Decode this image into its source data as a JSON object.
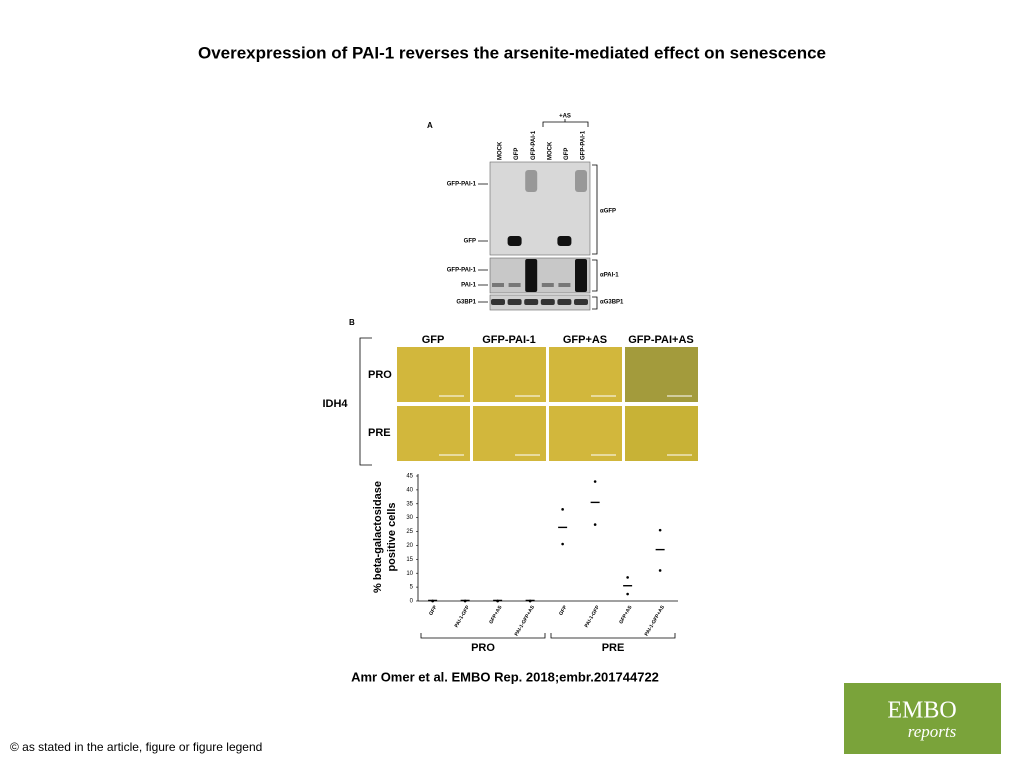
{
  "header": {
    "title": "Overexpression of PAI-1 reverses the arsenite-mediated effect on senescence"
  },
  "panel_a": {
    "label": "A",
    "treatment": "+AS",
    "lanes": [
      "MOCK",
      "GFP",
      "GFP-PAI-1",
      "MOCK",
      "GFP",
      "GFP-PAI-1"
    ],
    "left_labels": [
      "GFP-PAI-1",
      "GFP",
      "GFP-PAI-1",
      "PAI-1",
      "G3BP1"
    ],
    "right_labels": [
      "αGFP",
      "αPAI-1",
      "αG3BP1"
    ]
  },
  "panel_b": {
    "label": "B",
    "group": "IDH4",
    "columns": [
      "GFP",
      "GFP-PAI-1",
      "GFP+AS",
      "GFP-PAI+AS"
    ],
    "rows": [
      "PRO",
      "PRE"
    ]
  },
  "chart_data": {
    "type": "dot",
    "y_label": [
      "% beta-galactosidase",
      "positive cells"
    ],
    "categories": [
      "GFP",
      "PAI-1-GFP",
      "GFP+AS",
      "PAI-1-GFP+AS",
      "GFP",
      "PAI-1-GFP",
      "GFP+AS",
      "PAI-1-GFP+AS"
    ],
    "groups": [
      "PRO",
      "PRE"
    ],
    "values": [
      0.2,
      0.2,
      0.2,
      0.2,
      26.5,
      35.5,
      5.5,
      18.5
    ],
    "points": [
      [
        0,
        0,
        0,
        0,
        33,
        43,
        8.5,
        25.5
      ],
      [
        0,
        0,
        0,
        0,
        20.5,
        27.5,
        2.5,
        11
      ]
    ],
    "ylim": [
      0,
      45
    ],
    "yticks": [
      0,
      5,
      10,
      15,
      20,
      25,
      30,
      35,
      40,
      45
    ]
  },
  "footer": {
    "citation": "Amr Omer et al. EMBO Rep. 2018;embr.201744722",
    "copyright": "© as stated in the article, figure or figure legend",
    "logo": [
      "EMBO",
      "reports"
    ]
  }
}
